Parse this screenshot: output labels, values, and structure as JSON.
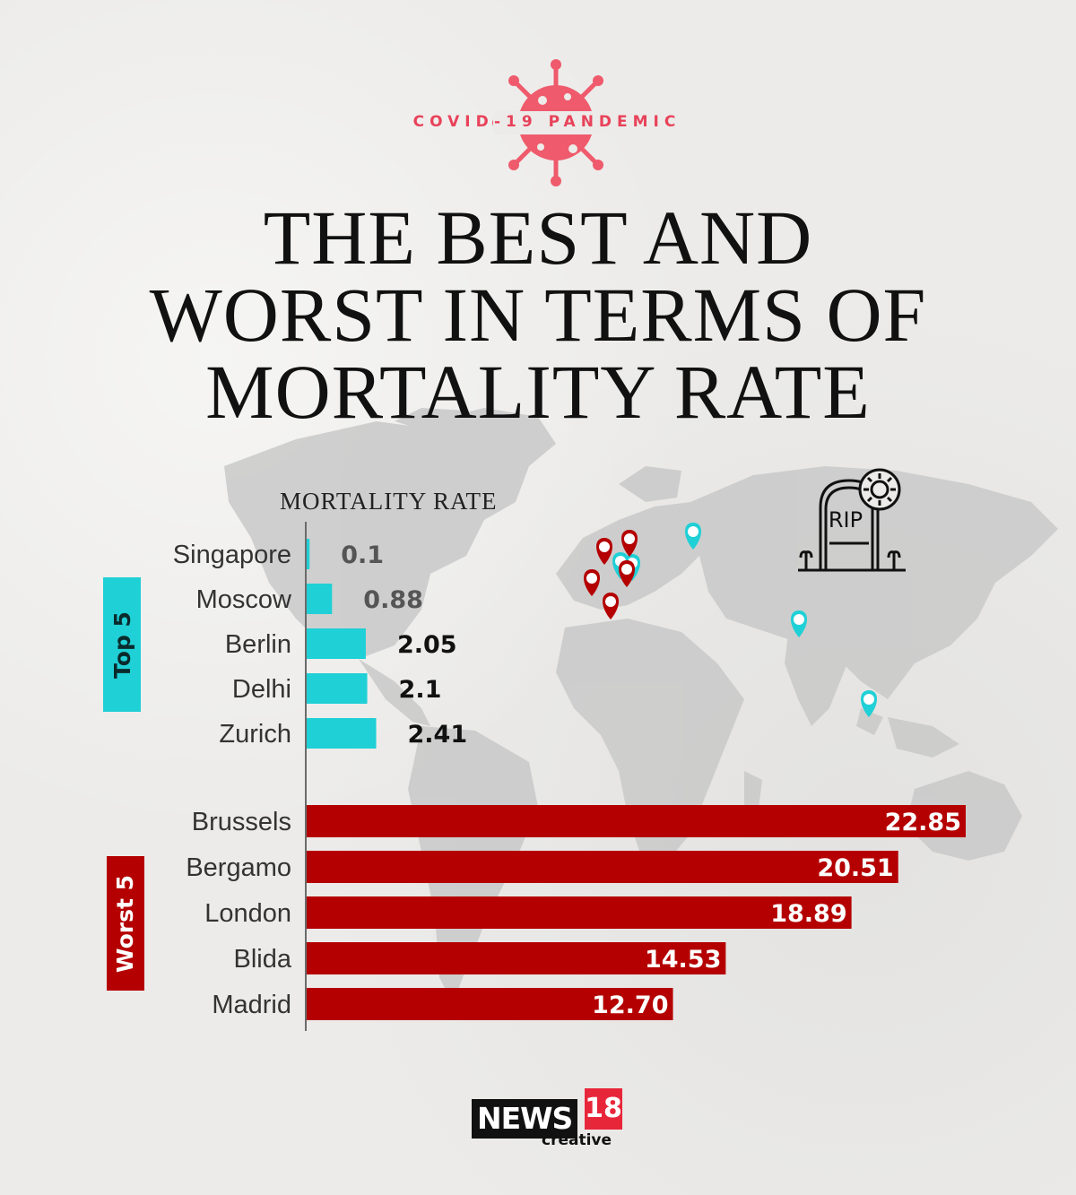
{
  "header": {
    "kicker": "COVID-19 PANDEMIC",
    "title_lines": [
      "THE BEST AND",
      "WORST IN TERMS OF",
      "MORTALITY RATE"
    ]
  },
  "chart_data": {
    "type": "bar",
    "orientation": "horizontal",
    "title": "THE BEST AND WORST IN TERMS OF MORTALITY RATE",
    "xlabel": "MORTALITY RATE",
    "groups": [
      {
        "name": "Top 5",
        "color": "#1fd0d6",
        "label_color": "#2a2a2a",
        "categories": [
          "Singapore",
          "Moscow",
          "Berlin",
          "Delhi",
          "Zurich"
        ],
        "values": [
          0.1,
          0.88,
          2.05,
          2.1,
          2.41
        ],
        "value_labels": [
          "0.1",
          "0.88",
          "2.05",
          "2.1",
          "2.41"
        ]
      },
      {
        "name": "Worst 5",
        "color": "#b40000",
        "label_color": "#ffffff",
        "categories": [
          "Brussels",
          "Bergamo",
          "London",
          "Blida",
          "Madrid"
        ],
        "values": [
          22.85,
          20.51,
          18.89,
          14.53,
          12.7
        ],
        "value_labels": [
          "22.85",
          "20.51",
          "18.89",
          "14.53",
          "12.70"
        ]
      }
    ],
    "xlim": [
      0,
      22.85
    ],
    "grid": false,
    "legend": "none"
  },
  "icons": {
    "virus": "virus-icon",
    "tombstone": "rip-tombstone-icon",
    "pins_best": "cyan-star-pin-icon",
    "pins_worst": "red-star-pin-icon"
  },
  "tombstone_text": "RIP",
  "logo": {
    "brand": "NEWS",
    "number": "18",
    "sub": "creative"
  },
  "colors": {
    "best": "#1fd0d6",
    "worst": "#b40000",
    "accent": "#e8425a",
    "map": "#c9c9c9"
  }
}
